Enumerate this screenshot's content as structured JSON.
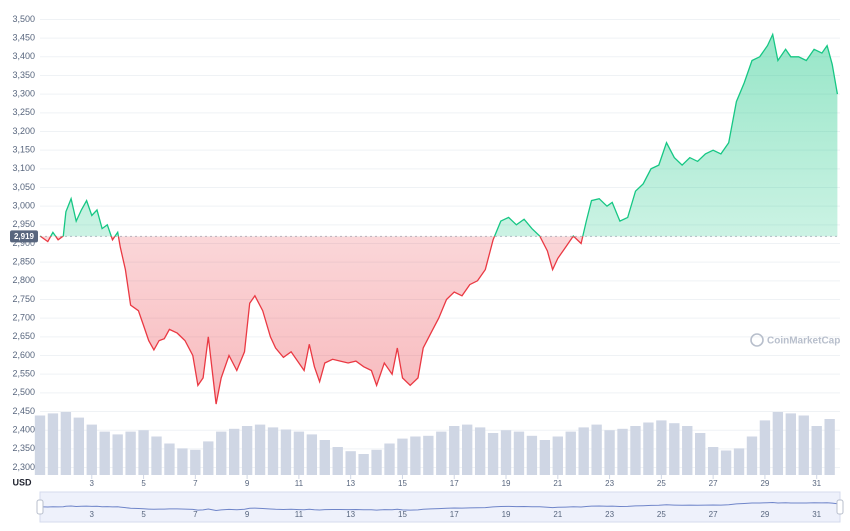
{
  "chart_data": {
    "type": "line",
    "y_label": "USD",
    "watermark": "CoinMarketCap",
    "colors": {
      "up": "#16c784",
      "down": "#ea3943",
      "volume": "#cfd6e4"
    },
    "grid": true,
    "xlim": [
      1,
      31.9
    ],
    "xticks": [
      3,
      5,
      7,
      9,
      11,
      13,
      15,
      17,
      19,
      21,
      23,
      25,
      27,
      29,
      31
    ],
    "ylim": [
      2280,
      3520
    ],
    "yticks": [
      {
        "value": 2300,
        "label": "2,300"
      },
      {
        "value": 2350,
        "label": "2,350"
      },
      {
        "value": 2400,
        "label": "2,400"
      },
      {
        "value": 2450,
        "label": "2,450"
      },
      {
        "value": 2500,
        "label": "2,500"
      },
      {
        "value": 2550,
        "label": "2,550"
      },
      {
        "value": 2600,
        "label": "2,600"
      },
      {
        "value": 2650,
        "label": "2,650"
      },
      {
        "value": 2700,
        "label": "2,700"
      },
      {
        "value": 2750,
        "label": "2,750"
      },
      {
        "value": 2800,
        "label": "2,800"
      },
      {
        "value": 2850,
        "label": "2,850"
      },
      {
        "value": 2900,
        "label": "2,900"
      },
      {
        "value": 2950,
        "label": "2,950"
      },
      {
        "value": 3000,
        "label": "3,000"
      },
      {
        "value": 3050,
        "label": "3,050"
      },
      {
        "value": 3100,
        "label": "3,100"
      },
      {
        "value": 3150,
        "label": "3,150"
      },
      {
        "value": 3200,
        "label": "3,200"
      },
      {
        "value": 3250,
        "label": "3,250"
      },
      {
        "value": 3300,
        "label": "3,300"
      },
      {
        "value": 3350,
        "label": "3,350"
      },
      {
        "value": 3400,
        "label": "3,400"
      },
      {
        "value": 3450,
        "label": "3,450"
      },
      {
        "value": 3500,
        "label": "3,500"
      }
    ],
    "reference": {
      "value": 2919,
      "label": "2,919"
    },
    "x": [
      1.0,
      1.3,
      1.5,
      1.7,
      1.9,
      2.0,
      2.2,
      2.4,
      2.6,
      2.8,
      3.0,
      3.2,
      3.4,
      3.6,
      3.8,
      4.0,
      4.1,
      4.3,
      4.5,
      4.8,
      5.0,
      5.2,
      5.4,
      5.6,
      5.8,
      6.0,
      6.3,
      6.6,
      6.9,
      7.1,
      7.3,
      7.5,
      7.7,
      7.8,
      8.0,
      8.3,
      8.6,
      8.9,
      9.1,
      9.3,
      9.6,
      9.9,
      10.1,
      10.4,
      10.7,
      11.0,
      11.2,
      11.4,
      11.6,
      11.8,
      12.0,
      12.3,
      12.6,
      12.9,
      13.2,
      13.5,
      13.8,
      14.0,
      14.3,
      14.6,
      14.8,
      15.0,
      15.3,
      15.6,
      15.8,
      16.1,
      16.4,
      16.7,
      17.0,
      17.3,
      17.6,
      17.9,
      18.2,
      18.5,
      18.8,
      19.1,
      19.4,
      19.7,
      20.0,
      20.3,
      20.6,
      20.8,
      21.0,
      21.3,
      21.6,
      21.9,
      22.1,
      22.3,
      22.6,
      22.9,
      23.1,
      23.4,
      23.7,
      24.0,
      24.3,
      24.6,
      24.9,
      25.2,
      25.5,
      25.8,
      26.1,
      26.4,
      26.7,
      27.0,
      27.3,
      27.6,
      27.9,
      28.2,
      28.5,
      28.8,
      29.1,
      29.3,
      29.5,
      29.8,
      30.0,
      30.3,
      30.6,
      30.9,
      31.2,
      31.4,
      31.6,
      31.8
    ],
    "values": [
      2920,
      2905,
      2930,
      2910,
      2920,
      2985,
      3020,
      2960,
      2990,
      3015,
      2975,
      2990,
      2940,
      2950,
      2910,
      2930,
      2890,
      2830,
      2735,
      2720,
      2680,
      2640,
      2615,
      2640,
      2645,
      2670,
      2660,
      2640,
      2600,
      2520,
      2540,
      2650,
      2530,
      2470,
      2540,
      2600,
      2560,
      2610,
      2740,
      2760,
      2720,
      2650,
      2620,
      2595,
      2610,
      2580,
      2560,
      2630,
      2570,
      2530,
      2580,
      2590,
      2585,
      2580,
      2585,
      2570,
      2560,
      2520,
      2580,
      2550,
      2620,
      2540,
      2520,
      2540,
      2620,
      2660,
      2700,
      2750,
      2770,
      2760,
      2790,
      2800,
      2830,
      2910,
      2960,
      2970,
      2950,
      2965,
      2940,
      2920,
      2880,
      2830,
      2860,
      2890,
      2920,
      2900,
      2960,
      3015,
      3020,
      3000,
      3010,
      2960,
      2970,
      3040,
      3060,
      3100,
      3110,
      3170,
      3130,
      3110,
      3130,
      3120,
      3140,
      3150,
      3140,
      3170,
      3280,
      3330,
      3390,
      3400,
      3430,
      3460,
      3390,
      3420,
      3400,
      3400,
      3390,
      3420,
      3410,
      3430,
      3380,
      3300
    ],
    "volume": {
      "vlim": [
        0,
        100
      ],
      "x": [
        1.0,
        1.5,
        2.0,
        2.5,
        3.0,
        3.5,
        4.0,
        4.5,
        5.0,
        5.5,
        6.0,
        6.5,
        7.0,
        7.5,
        8.0,
        8.5,
        9.0,
        9.5,
        10.0,
        10.5,
        11.0,
        11.5,
        12.0,
        12.5,
        13.0,
        13.5,
        14.0,
        14.5,
        15.0,
        15.5,
        16.0,
        16.5,
        17.0,
        17.5,
        18.0,
        18.5,
        19.0,
        19.5,
        20.0,
        20.5,
        21.0,
        21.5,
        22.0,
        22.5,
        23.0,
        23.5,
        24.0,
        24.5,
        25.0,
        25.5,
        26.0,
        26.5,
        27.0,
        27.5,
        28.0,
        28.5,
        29.0,
        29.5,
        30.0,
        30.5,
        31.0,
        31.5
      ],
      "values": [
        85,
        88,
        90,
        82,
        72,
        62,
        58,
        62,
        64,
        55,
        45,
        38,
        36,
        48,
        62,
        66,
        70,
        72,
        68,
        65,
        62,
        58,
        50,
        40,
        34,
        30,
        36,
        45,
        52,
        55,
        56,
        62,
        70,
        72,
        68,
        60,
        64,
        62,
        56,
        50,
        55,
        62,
        68,
        72,
        64,
        66,
        70,
        75,
        78,
        74,
        70,
        60,
        40,
        35,
        38,
        55,
        78,
        90,
        88,
        85,
        70,
        80
      ]
    }
  }
}
